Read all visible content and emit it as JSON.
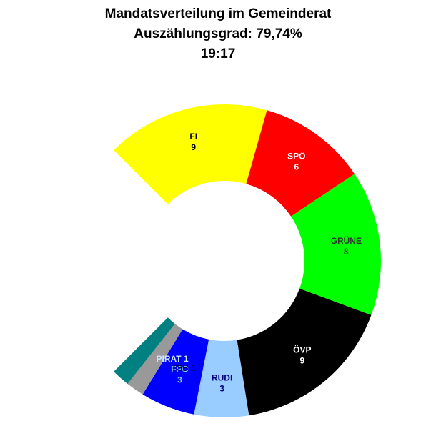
{
  "chart_data": {
    "type": "pie",
    "variant": "donut-arc",
    "title": "Mandatsverteilung im Gemeinderat",
    "subtitle": "Auszählungsgrad: 79,74%",
    "time": "19:17",
    "series": [
      {
        "name": "FI",
        "value": 9,
        "color": "#ffff00",
        "label_color": "#000000"
      },
      {
        "name": "SPÖ",
        "value": 6,
        "color": "#ff0000",
        "label_color": "#ffffff"
      },
      {
        "name": "GRÜNE",
        "value": 8,
        "color": "#00ff00",
        "label_color": "#333333"
      },
      {
        "name": "ÖVP",
        "value": 9,
        "color": "#000000",
        "label_color": "#ffffff"
      },
      {
        "name": "RUDI",
        "value": 3,
        "color": "#99ccff",
        "label_color": "#000080"
      },
      {
        "name": "FPÖ",
        "value": 3,
        "color": "#0000ff",
        "label_color": "#66ccff"
      },
      {
        "name": "TSB",
        "value": 1,
        "color": "#999999",
        "label_color": "#000000"
      },
      {
        "name": "PIRAT",
        "value": 1,
        "color": "#008080",
        "label_color": "#cce6ff"
      }
    ]
  }
}
